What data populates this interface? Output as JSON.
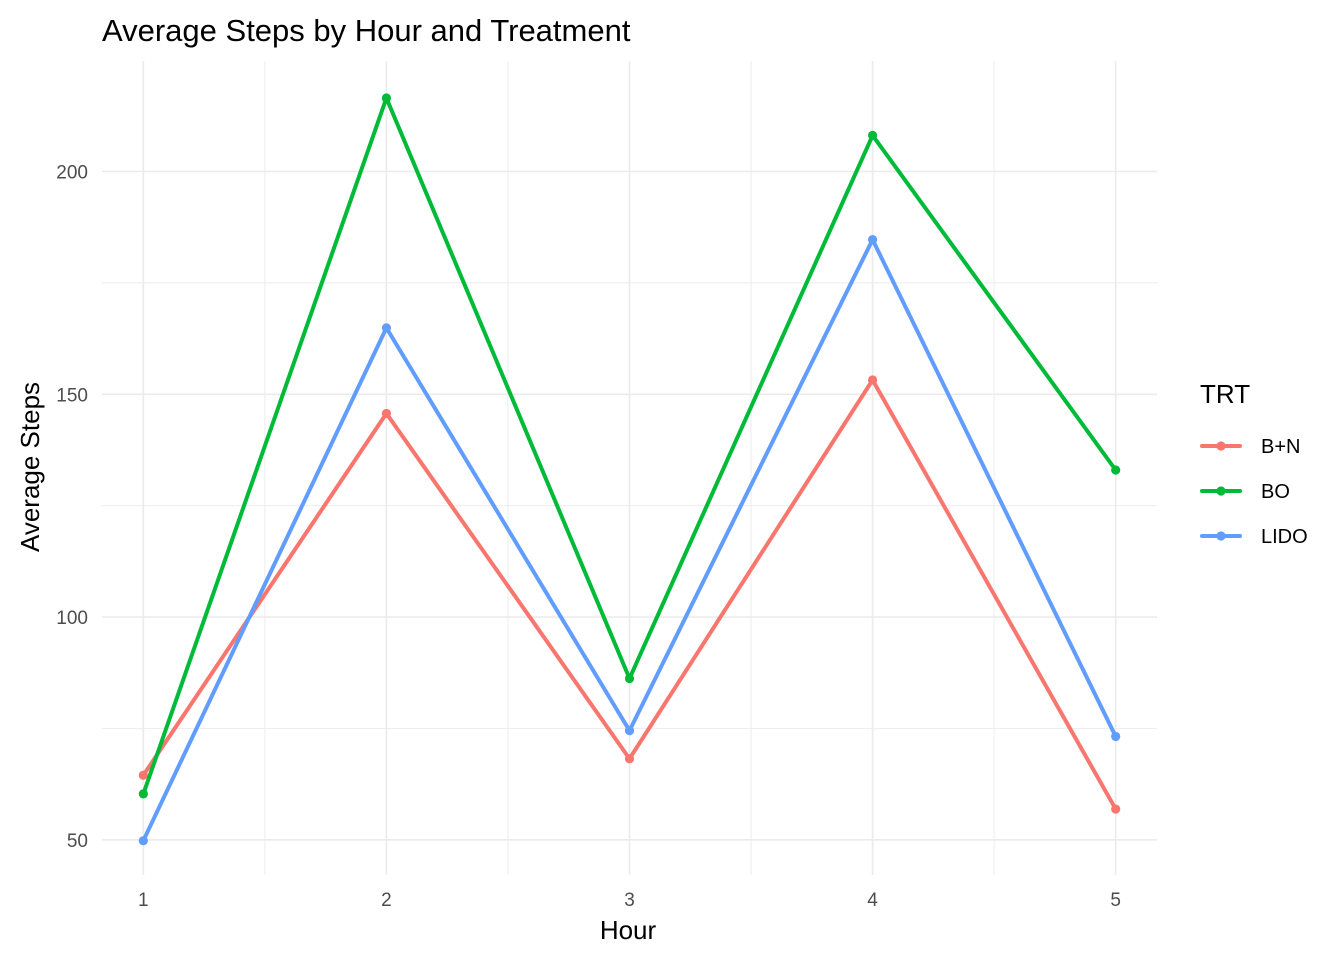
{
  "chart_data": {
    "type": "line",
    "title": "Average Steps by Hour and Treatment",
    "xlabel": "Hour",
    "ylabel": "Average Steps",
    "x": [
      1,
      2,
      3,
      4,
      5
    ],
    "x_ticks": [
      "1",
      "2",
      "3",
      "4",
      "5"
    ],
    "y_ticks": [
      "50",
      "100",
      "150",
      "200"
    ],
    "xlim": [
      0.83,
      5.17
    ],
    "ylim": [
      42.1,
      224.8
    ],
    "grid": true,
    "legend": {
      "title": "TRT",
      "placement": "right"
    },
    "series": [
      {
        "name": "B+N",
        "color": "#F8766D",
        "values": [
          64.5,
          145.7,
          68.2,
          153.2,
          56.9
        ]
      },
      {
        "name": "BO",
        "color": "#00BA38",
        "values": [
          60.3,
          216.5,
          86.2,
          208.1,
          133.0
        ]
      },
      {
        "name": "LIDO",
        "color": "#619CFF",
        "values": [
          49.8,
          164.9,
          74.5,
          184.7,
          73.2
        ]
      }
    ]
  }
}
